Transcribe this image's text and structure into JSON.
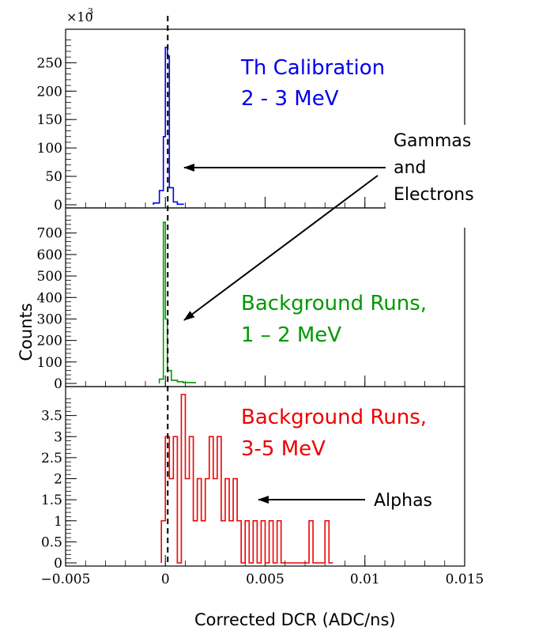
{
  "figure": {
    "x_axis_label": "Corrected DCR (ADC/ns)",
    "y_axis_label": "Counts",
    "annotations": {
      "gammas_electrons": [
        "Gammas",
        "and",
        "Electrons"
      ],
      "alphas": "Alphas"
    }
  },
  "chart_data": [
    {
      "type": "histogram",
      "title": [
        "Th Calibration",
        "2 - 3 MeV"
      ],
      "color": "#0000ee",
      "y_multiplier_label": "×10",
      "y_multiplier_exp": "3",
      "xlim": [
        -0.005,
        0.015
      ],
      "ylim": [
        0,
        295
      ],
      "yticks": [
        0,
        50,
        100,
        150,
        200,
        250
      ],
      "ytick_labels": [
        "0",
        "50",
        "100",
        "150",
        "200",
        "250"
      ],
      "bins": [
        {
          "x0": -0.0006,
          "x1": -0.0003,
          "y": 3
        },
        {
          "x0": -0.0003,
          "x1": -0.0001,
          "y": 25
        },
        {
          "x0": -0.0001,
          "x1": 0.0,
          "y": 120
        },
        {
          "x0": 0.0,
          "x1": 0.0001,
          "y": 277
        },
        {
          "x0": 0.0001,
          "x1": 0.0002,
          "y": 262
        },
        {
          "x0": 0.0002,
          "x1": 0.0004,
          "y": 30
        },
        {
          "x0": 0.0004,
          "x1": 0.0006,
          "y": 5
        },
        {
          "x0": 0.0006,
          "x1": 0.0009,
          "y": 1
        }
      ]
    },
    {
      "type": "histogram",
      "title": [
        "Background Runs,",
        "1 – 2 MeV"
      ],
      "color": "#009900",
      "xlim": [
        -0.005,
        0.015
      ],
      "ylim": [
        0,
        780
      ],
      "yticks": [
        0,
        100,
        200,
        300,
        400,
        500,
        600,
        700
      ],
      "ytick_labels": [
        "0",
        "100",
        "200",
        "300",
        "400",
        "500",
        "600",
        "700"
      ],
      "bins": [
        {
          "x0": -0.0003,
          "x1": -0.0001,
          "y": 20
        },
        {
          "x0": -0.0001,
          "x1": 0.0,
          "y": 750
        },
        {
          "x0": 0.0,
          "x1": 0.0001,
          "y": 300
        },
        {
          "x0": 0.0001,
          "x1": 0.0003,
          "y": 60
        },
        {
          "x0": 0.0003,
          "x1": 0.0006,
          "y": 15
        },
        {
          "x0": 0.0006,
          "x1": 0.0009,
          "y": 8
        },
        {
          "x0": 0.0009,
          "x1": 0.0015,
          "y": 4
        }
      ]
    },
    {
      "type": "histogram",
      "title": [
        "Background Runs,",
        "3-5 MeV"
      ],
      "color": "#ee0000",
      "xlim": [
        -0.005,
        0.015
      ],
      "ylim": [
        0,
        4.0
      ],
      "yticks": [
        0,
        0.5,
        1,
        1.5,
        2,
        2.5,
        3,
        3.5
      ],
      "ytick_labels": [
        "0",
        "0.5",
        "1",
        "1.5",
        "2",
        "2.5",
        "3",
        "3.5"
      ],
      "xticks": [
        -0.005,
        0,
        0.005,
        0.01,
        0.015
      ],
      "xtick_labels": [
        "−0.005",
        "0",
        "0.005",
        "0.01",
        "0.015"
      ],
      "bins": [
        {
          "x0": -0.0002,
          "x1": 0.0,
          "y": 1
        },
        {
          "x0": 0.0,
          "x1": 0.0002,
          "y": 3
        },
        {
          "x0": 0.0002,
          "x1": 0.0004,
          "y": 2
        },
        {
          "x0": 0.0004,
          "x1": 0.0006,
          "y": 3
        },
        {
          "x0": 0.0006,
          "x1": 0.0008,
          "y": 0
        },
        {
          "x0": 0.0008,
          "x1": 0.001,
          "y": 4
        },
        {
          "x0": 0.001,
          "x1": 0.0012,
          "y": 2
        },
        {
          "x0": 0.0012,
          "x1": 0.0014,
          "y": 3
        },
        {
          "x0": 0.0014,
          "x1": 0.0016,
          "y": 1
        },
        {
          "x0": 0.0016,
          "x1": 0.0018,
          "y": 2
        },
        {
          "x0": 0.0018,
          "x1": 0.002,
          "y": 1
        },
        {
          "x0": 0.002,
          "x1": 0.0022,
          "y": 2
        },
        {
          "x0": 0.0022,
          "x1": 0.0024,
          "y": 3
        },
        {
          "x0": 0.0024,
          "x1": 0.0026,
          "y": 2
        },
        {
          "x0": 0.0026,
          "x1": 0.0028,
          "y": 3
        },
        {
          "x0": 0.0028,
          "x1": 0.003,
          "y": 1
        },
        {
          "x0": 0.003,
          "x1": 0.0032,
          "y": 2
        },
        {
          "x0": 0.0032,
          "x1": 0.0034,
          "y": 1
        },
        {
          "x0": 0.0034,
          "x1": 0.0036,
          "y": 2
        },
        {
          "x0": 0.0036,
          "x1": 0.0038,
          "y": 1
        },
        {
          "x0": 0.0038,
          "x1": 0.004,
          "y": 0
        },
        {
          "x0": 0.004,
          "x1": 0.0042,
          "y": 1
        },
        {
          "x0": 0.0042,
          "x1": 0.0044,
          "y": 0
        },
        {
          "x0": 0.0044,
          "x1": 0.0046,
          "y": 1
        },
        {
          "x0": 0.0046,
          "x1": 0.0048,
          "y": 0
        },
        {
          "x0": 0.0048,
          "x1": 0.005,
          "y": 1
        },
        {
          "x0": 0.005,
          "x1": 0.0052,
          "y": 0
        },
        {
          "x0": 0.0052,
          "x1": 0.0054,
          "y": 1
        },
        {
          "x0": 0.0054,
          "x1": 0.0056,
          "y": 0
        },
        {
          "x0": 0.0056,
          "x1": 0.0058,
          "y": 1
        },
        {
          "x0": 0.0058,
          "x1": 0.0072,
          "y": 0
        },
        {
          "x0": 0.0072,
          "x1": 0.0074,
          "y": 1
        },
        {
          "x0": 0.0074,
          "x1": 0.008,
          "y": 0
        },
        {
          "x0": 0.008,
          "x1": 0.0082,
          "y": 1
        },
        {
          "x0": 0.0082,
          "x1": 0.0084,
          "y": 0
        }
      ]
    }
  ]
}
